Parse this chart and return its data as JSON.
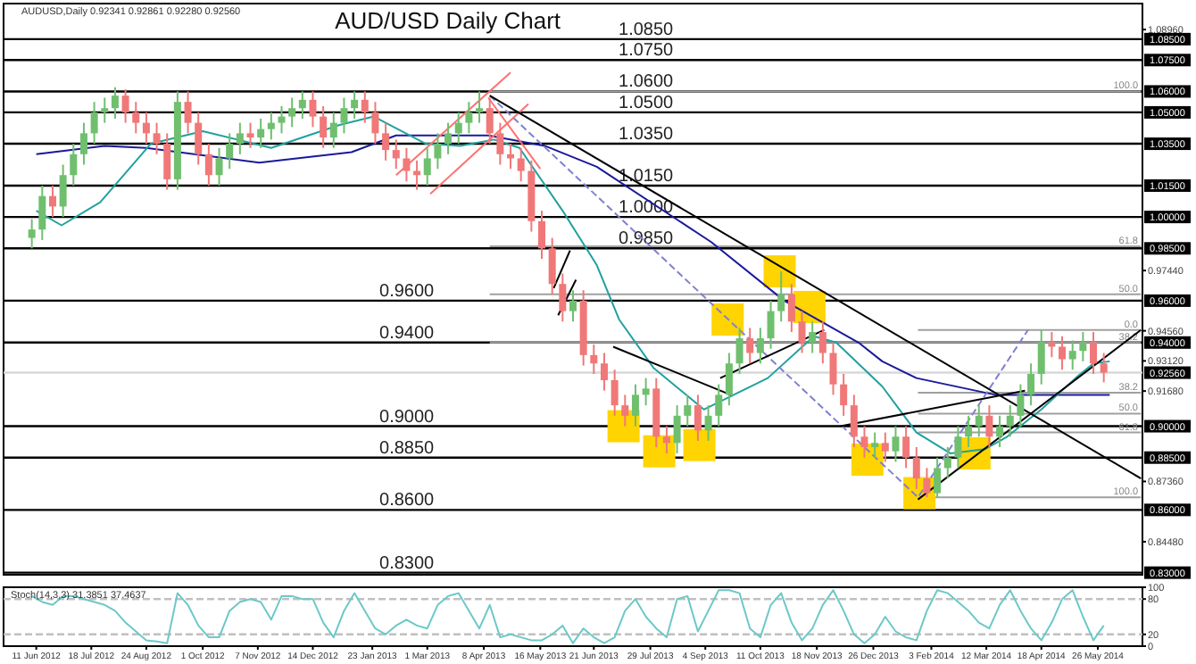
{
  "chart_data": [
    {
      "type": "candlestick",
      "title": "AUD/USD Daily Chart",
      "subtitle": "AUDUSD,Daily 0.92341 0.92861 0.92280 0.92560",
      "tick_labels": "y",
      "xlim": [
        "2012-05-20",
        "2014-06-25"
      ],
      "ylim": [
        0.829,
        1.102
      ],
      "y2lim": [
        0.829,
        1.102
      ],
      "yticks": [
        {
          "value": 1.0896,
          "label": "1.08960"
        },
        {
          "value": 0.9744,
          "label": "0.97440"
        },
        {
          "value": 0.9456,
          "label": "0.94560"
        },
        {
          "value": 0.9312,
          "label": "0.93120"
        },
        {
          "value": 0.9168,
          "label": "0.91680"
        },
        {
          "value": 0.8736,
          "label": "0.87360"
        },
        {
          "value": 0.8448,
          "label": "0.84480"
        }
      ],
      "y2ticks": [
        {
          "value": 1.085,
          "label": "1.08500"
        },
        {
          "value": 1.075,
          "label": "1.07500"
        },
        {
          "value": 1.06,
          "label": "1.06000"
        },
        {
          "value": 1.05,
          "label": "1.05000"
        },
        {
          "value": 1.035,
          "label": "1.03500"
        },
        {
          "value": 1.015,
          "label": "1.01500"
        },
        {
          "value": 1.0,
          "label": "1.00000"
        },
        {
          "value": 0.985,
          "label": "0.98500"
        },
        {
          "value": 0.96,
          "label": "0.96000"
        },
        {
          "value": 0.94,
          "label": "0.94000"
        },
        {
          "value": 0.9256,
          "label": "0.92560"
        },
        {
          "value": 0.9,
          "label": "0.90000"
        },
        {
          "value": 0.885,
          "label": "0.88500"
        },
        {
          "value": 0.86,
          "label": "0.86000"
        },
        {
          "value": 0.83,
          "label": "0.83000"
        }
      ],
      "ref_lines": [
        {
          "axis": "y",
          "value": 1.085,
          "label": "1.0850",
          "color": "#000000"
        },
        {
          "axis": "y",
          "value": 1.075,
          "label": "1.0750",
          "color": "#000000"
        },
        {
          "axis": "y",
          "value": 1.06,
          "label": "1.0600",
          "color": "#000000"
        },
        {
          "axis": "y",
          "value": 1.05,
          "label": "1.0500",
          "color": "#000000"
        },
        {
          "axis": "y",
          "value": 1.035,
          "label": "1.0350",
          "color": "#000000"
        },
        {
          "axis": "y",
          "value": 1.015,
          "label": "1.0150",
          "color": "#000000"
        },
        {
          "axis": "y",
          "value": 1.0,
          "label": "1.0000",
          "color": "#000000"
        },
        {
          "axis": "y",
          "value": 0.985,
          "label": "0.9850",
          "color": "#000000"
        },
        {
          "axis": "y",
          "value": 0.96,
          "label": "0.9600",
          "color": "#000000"
        },
        {
          "axis": "y",
          "value": 0.94,
          "label": "0.9400",
          "color": "#000000"
        },
        {
          "axis": "y",
          "value": 0.9,
          "label": "0.9000",
          "color": "#000000"
        },
        {
          "axis": "y",
          "value": 0.885,
          "label": "0.8850",
          "color": "#000000"
        },
        {
          "axis": "y",
          "value": 0.86,
          "label": "0.8600",
          "color": "#000000"
        },
        {
          "axis": "y",
          "value": 0.83,
          "label": "0.8300",
          "color": "#000000"
        },
        {
          "axis": "y",
          "value": 0.9256,
          "color": "#d8d8d8"
        }
      ],
      "annotations": [
        {
          "text": "100.0",
          "x": "2014-06-22",
          "y": 1.06
        },
        {
          "text": "61.8",
          "x": "2014-06-22",
          "y": 0.986
        },
        {
          "text": "50.0",
          "x": "2014-06-22",
          "y": 0.963
        },
        {
          "text": "38.2",
          "x": "2014-06-22",
          "y": 0.94
        },
        {
          "text": "0.0",
          "x": "2014-06-22",
          "y": 0.946
        },
        {
          "text": "38.2",
          "x": "2014-06-22",
          "y": 0.916
        },
        {
          "text": "50.0",
          "x": "2014-06-22",
          "y": 0.906
        },
        {
          "text": "61.8",
          "x": "2014-06-22",
          "y": 0.897
        },
        {
          "text": "100.0",
          "x": "2014-06-22",
          "y": 0.866
        }
      ],
      "x": [
        "2012-06-08",
        "2012-06-15",
        "2012-06-22",
        "2012-06-29",
        "2012-07-06",
        "2012-07-13",
        "2012-07-20",
        "2012-07-27",
        "2012-08-03",
        "2012-08-10",
        "2012-08-17",
        "2012-08-24",
        "2012-08-31",
        "2012-09-07",
        "2012-09-14",
        "2012-09-21",
        "2012-09-28",
        "2012-10-05",
        "2012-10-12",
        "2012-10-19",
        "2012-10-26",
        "2012-11-02",
        "2012-11-09",
        "2012-11-16",
        "2012-11-23",
        "2012-11-30",
        "2012-12-07",
        "2012-12-14",
        "2012-12-21",
        "2012-12-28",
        "2013-01-04",
        "2013-01-11",
        "2013-01-18",
        "2013-01-25",
        "2013-02-01",
        "2013-02-08",
        "2013-02-15",
        "2013-02-22",
        "2013-03-01",
        "2013-03-08",
        "2013-03-15",
        "2013-03-22",
        "2013-03-29",
        "2013-04-05",
        "2013-04-12",
        "2013-04-19",
        "2013-04-26",
        "2013-05-03",
        "2013-05-10",
        "2013-05-17",
        "2013-05-24",
        "2013-05-31",
        "2013-06-07",
        "2013-06-14",
        "2013-06-21",
        "2013-06-28",
        "2013-07-05",
        "2013-07-12",
        "2013-07-19",
        "2013-07-26",
        "2013-08-02",
        "2013-08-09",
        "2013-08-16",
        "2013-08-23",
        "2013-08-30",
        "2013-09-06",
        "2013-09-13",
        "2013-09-20",
        "2013-09-27",
        "2013-10-04",
        "2013-10-11",
        "2013-10-18",
        "2013-10-25",
        "2013-11-01",
        "2013-11-08",
        "2013-11-15",
        "2013-11-22",
        "2013-11-29",
        "2013-12-06",
        "2013-12-13",
        "2013-12-20",
        "2013-12-27",
        "2014-01-03",
        "2014-01-10",
        "2014-01-17",
        "2014-01-24",
        "2014-01-31",
        "2014-02-07",
        "2014-02-14",
        "2014-02-21",
        "2014-02-28",
        "2014-03-07",
        "2014-03-14",
        "2014-03-21",
        "2014-03-28",
        "2014-04-04",
        "2014-04-11",
        "2014-04-18",
        "2014-04-25",
        "2014-05-02",
        "2014-05-09",
        "2014-05-16",
        "2014-05-23",
        "2014-05-30"
      ],
      "ohlc": [
        [
          0.99,
          0.999,
          0.985,
          0.994
        ],
        [
          0.994,
          1.015,
          0.989,
          1.01
        ],
        [
          1.01,
          1.015,
          1.0,
          1.005
        ],
        [
          1.005,
          1.025,
          1.0,
          1.02
        ],
        [
          1.02,
          1.035,
          1.015,
          1.03
        ],
        [
          1.03,
          1.045,
          1.025,
          1.04
        ],
        [
          1.04,
          1.055,
          1.035,
          1.05
        ],
        [
          1.05,
          1.057,
          1.045,
          1.052
        ],
        [
          1.052,
          1.062,
          1.047,
          1.058
        ],
        [
          1.058,
          1.061,
          1.045,
          1.05
        ],
        [
          1.05,
          1.055,
          1.04,
          1.045
        ],
        [
          1.045,
          1.05,
          1.035,
          1.04
        ],
        [
          1.04,
          1.045,
          1.03,
          1.035
        ],
        [
          1.035,
          1.04,
          1.013,
          1.018
        ],
        [
          1.018,
          1.06,
          1.013,
          1.055
        ],
        [
          1.055,
          1.06,
          1.04,
          1.045
        ],
        [
          1.045,
          1.05,
          1.025,
          1.03
        ],
        [
          1.03,
          1.035,
          1.015,
          1.02
        ],
        [
          1.02,
          1.033,
          1.015,
          1.028
        ],
        [
          1.028,
          1.04,
          1.023,
          1.035
        ],
        [
          1.035,
          1.045,
          1.03,
          1.04
        ],
        [
          1.04,
          1.045,
          1.033,
          1.038
        ],
        [
          1.038,
          1.047,
          1.033,
          1.042
        ],
        [
          1.042,
          1.05,
          1.037,
          1.045
        ],
        [
          1.045,
          1.053,
          1.04,
          1.048
        ],
        [
          1.048,
          1.057,
          1.043,
          1.052
        ],
        [
          1.052,
          1.06,
          1.047,
          1.056
        ],
        [
          1.056,
          1.06,
          1.043,
          1.048
        ],
        [
          1.048,
          1.053,
          1.033,
          1.038
        ],
        [
          1.038,
          1.05,
          1.033,
          1.045
        ],
        [
          1.045,
          1.057,
          1.04,
          1.052
        ],
        [
          1.052,
          1.06,
          1.047,
          1.056
        ],
        [
          1.056,
          1.06,
          1.045,
          1.05
        ],
        [
          1.05,
          1.055,
          1.035,
          1.04
        ],
        [
          1.04,
          1.045,
          1.027,
          1.032
        ],
        [
          1.032,
          1.037,
          1.023,
          1.028
        ],
        [
          1.028,
          1.033,
          1.017,
          1.022
        ],
        [
          1.022,
          1.027,
          1.013,
          1.02
        ],
        [
          1.02,
          1.033,
          1.015,
          1.028
        ],
        [
          1.028,
          1.04,
          1.023,
          1.035
        ],
        [
          1.035,
          1.045,
          1.03,
          1.04
        ],
        [
          1.04,
          1.05,
          1.035,
          1.045
        ],
        [
          1.045,
          1.055,
          1.04,
          1.05
        ],
        [
          1.05,
          1.06,
          1.045,
          1.052
        ],
        [
          1.052,
          1.057,
          1.035,
          1.04
        ],
        [
          1.04,
          1.045,
          1.025,
          1.03
        ],
        [
          1.03,
          1.035,
          1.023,
          1.028
        ],
        [
          1.028,
          1.033,
          1.017,
          1.022
        ],
        [
          1.022,
          1.027,
          0.993,
          0.998
        ],
        [
          0.998,
          1.003,
          0.98,
          0.985
        ],
        [
          0.985,
          0.99,
          0.963,
          0.968
        ],
        [
          0.968,
          0.973,
          0.95,
          0.955
        ],
        [
          0.955,
          0.965,
          0.95,
          0.96
        ],
        [
          0.96,
          0.965,
          0.929,
          0.934
        ],
        [
          0.934,
          0.939,
          0.925,
          0.93
        ],
        [
          0.93,
          0.935,
          0.917,
          0.922
        ],
        [
          0.922,
          0.927,
          0.905,
          0.91
        ],
        [
          0.91,
          0.915,
          0.9,
          0.905
        ],
        [
          0.905,
          0.92,
          0.9,
          0.915
        ],
        [
          0.915,
          0.923,
          0.91,
          0.918
        ],
        [
          0.918,
          0.923,
          0.89,
          0.895
        ],
        [
          0.895,
          0.9,
          0.887,
          0.892
        ],
        [
          0.892,
          0.91,
          0.887,
          0.905
        ],
        [
          0.905,
          0.915,
          0.9,
          0.91
        ],
        [
          0.91,
          0.915,
          0.893,
          0.898
        ],
        [
          0.898,
          0.91,
          0.893,
          0.905
        ],
        [
          0.905,
          0.92,
          0.9,
          0.915
        ],
        [
          0.915,
          0.935,
          0.91,
          0.93
        ],
        [
          0.93,
          0.947,
          0.925,
          0.942
        ],
        [
          0.942,
          0.947,
          0.93,
          0.935
        ],
        [
          0.935,
          0.947,
          0.93,
          0.942
        ],
        [
          0.942,
          0.96,
          0.937,
          0.955
        ],
        [
          0.955,
          0.974,
          0.95,
          0.963
        ],
        [
          0.963,
          0.968,
          0.945,
          0.95
        ],
        [
          0.95,
          0.955,
          0.935,
          0.94
        ],
        [
          0.94,
          0.95,
          0.935,
          0.945
        ],
        [
          0.945,
          0.95,
          0.93,
          0.935
        ],
        [
          0.935,
          0.94,
          0.915,
          0.92
        ],
        [
          0.92,
          0.925,
          0.905,
          0.91
        ],
        [
          0.91,
          0.915,
          0.89,
          0.895
        ],
        [
          0.895,
          0.9,
          0.885,
          0.89
        ],
        [
          0.89,
          0.897,
          0.885,
          0.892
        ],
        [
          0.892,
          0.897,
          0.883,
          0.888
        ],
        [
          0.888,
          0.9,
          0.883,
          0.895
        ],
        [
          0.895,
          0.9,
          0.88,
          0.885
        ],
        [
          0.885,
          0.89,
          0.87,
          0.875
        ],
        [
          0.875,
          0.88,
          0.866,
          0.868
        ],
        [
          0.868,
          0.885,
          0.866,
          0.88
        ],
        [
          0.88,
          0.89,
          0.875,
          0.885
        ],
        [
          0.885,
          0.9,
          0.88,
          0.895
        ],
        [
          0.895,
          0.905,
          0.89,
          0.9
        ],
        [
          0.9,
          0.91,
          0.895,
          0.905
        ],
        [
          0.905,
          0.91,
          0.89,
          0.895
        ],
        [
          0.895,
          0.905,
          0.89,
          0.9
        ],
        [
          0.9,
          0.91,
          0.895,
          0.905
        ],
        [
          0.905,
          0.92,
          0.9,
          0.915
        ],
        [
          0.915,
          0.93,
          0.91,
          0.925
        ],
        [
          0.925,
          0.946,
          0.92,
          0.94
        ],
        [
          0.94,
          0.945,
          0.933,
          0.938
        ],
        [
          0.938,
          0.943,
          0.927,
          0.932
        ],
        [
          0.932,
          0.941,
          0.927,
          0.936
        ],
        [
          0.936,
          0.945,
          0.931,
          0.94
        ],
        [
          0.94,
          0.945,
          0.925,
          0.93
        ],
        [
          0.93,
          0.935,
          0.921,
          0.9256
        ]
      ],
      "series": [
        {
          "type": "line",
          "color": "#a0a0a0",
          "x": [
            "2013-04-12",
            "2014-06-24"
          ],
          "values": [
            1.06,
            1.06
          ]
        },
        {
          "type": "line",
          "color": "#a0a0a0",
          "x": [
            "2013-04-12",
            "2014-06-24"
          ],
          "values": [
            0.986,
            0.986
          ]
        },
        {
          "type": "line",
          "color": "#a0a0a0",
          "x": [
            "2013-04-12",
            "2014-06-24"
          ],
          "values": [
            0.963,
            0.963
          ]
        },
        {
          "type": "line",
          "color": "#a0a0a0",
          "x": [
            "2013-04-12",
            "2014-06-24"
          ],
          "values": [
            0.94,
            0.94
          ]
        },
        {
          "type": "line",
          "color": "#a0a0a0",
          "x": [
            "2014-01-25",
            "2014-06-24"
          ],
          "values": [
            0.946,
            0.946
          ]
        },
        {
          "type": "line",
          "color": "#a0a0a0",
          "x": [
            "2014-01-25",
            "2014-06-24"
          ],
          "values": [
            0.916,
            0.916
          ]
        },
        {
          "type": "line",
          "color": "#a0a0a0",
          "x": [
            "2014-01-25",
            "2014-06-24"
          ],
          "values": [
            0.906,
            0.906
          ]
        },
        {
          "type": "line",
          "color": "#a0a0a0",
          "x": [
            "2014-01-25",
            "2014-06-24"
          ],
          "values": [
            0.897,
            0.897
          ]
        },
        {
          "type": "line",
          "color": "#a0a0a0",
          "x": [
            "2014-01-25",
            "2014-06-24"
          ],
          "values": [
            0.866,
            0.866
          ]
        },
        {
          "type": "scatter",
          "marker": "square",
          "color": "#ffd400",
          "x": [
            "2013-07-11",
            "2013-08-04",
            "2013-08-31",
            "2013-09-19",
            "2013-10-24",
            "2013-11-13",
            "2013-12-22",
            "2014-01-26",
            "2014-03-04"
          ],
          "values": [
            0.9,
            0.888,
            0.891,
            0.951,
            0.974,
            0.957,
            0.884,
            0.868,
            0.887
          ]
        },
        {
          "type": "line",
          "color": "#1a1a9a",
          "x": [
            "2012-06-11",
            "2012-07-27",
            "2012-08-24",
            "2012-11-08",
            "2013-01-09",
            "2013-02-08",
            "2013-04-11",
            "2013-05-19",
            "2013-06-23",
            "2013-09-08",
            "2013-10-27",
            "2013-12-16",
            "2014-01-01",
            "2014-01-24",
            "2014-03-18",
            "2014-06-03"
          ],
          "values": [
            1.03,
            1.034,
            1.033,
            1.026,
            1.031,
            1.039,
            1.039,
            1.034,
            1.024,
            0.988,
            0.96,
            0.94,
            0.931,
            0.923,
            0.915,
            0.915
          ]
        },
        {
          "type": "line",
          "color": "#20a0a0",
          "x": [
            "2012-06-11",
            "2012-06-28",
            "2012-07-24",
            "2012-08-27",
            "2012-10-01",
            "2012-11-16",
            "2013-01-01",
            "2013-01-24",
            "2013-02-28",
            "2013-03-23",
            "2013-04-15",
            "2013-05-02",
            "2013-05-31",
            "2013-06-23",
            "2013-07-08",
            "2013-07-31",
            "2013-09-03",
            "2013-10-16",
            "2013-11-16",
            "2013-12-01",
            "2014-01-01",
            "2014-01-24",
            "2014-02-16",
            "2014-03-11",
            "2014-03-26",
            "2014-04-18",
            "2014-05-11",
            "2014-05-23",
            "2014-06-03"
          ],
          "values": [
            1.003,
            0.996,
            1.007,
            1.035,
            1.041,
            1.033,
            1.044,
            1.048,
            1.035,
            1.034,
            1.037,
            1.033,
            1.003,
            0.977,
            0.951,
            0.928,
            0.908,
            0.923,
            0.943,
            0.94,
            0.919,
            0.897,
            0.887,
            0.889,
            0.895,
            0.908,
            0.923,
            0.93,
            0.931
          ]
        },
        {
          "type": "line",
          "color": "#8080d0",
          "line_style": "dashed",
          "x": [
            "2013-04-12",
            "2014-01-25",
            "2014-04-09"
          ],
          "values": [
            1.058,
            0.866,
            0.946
          ]
        },
        {
          "type": "line",
          "color": "#ff7070",
          "x": [
            "2013-02-08",
            "2013-04-26"
          ],
          "values": [
            1.02,
            1.069
          ]
        },
        {
          "type": "line",
          "color": "#ff7070",
          "x": [
            "2013-03-03",
            "2013-05-08"
          ],
          "values": [
            1.011,
            1.054
          ]
        },
        {
          "type": "line",
          "color": "#ff7070",
          "x": [
            "2013-04-11",
            "2013-05-16"
          ],
          "values": [
            1.057,
            1.023
          ]
        },
        {
          "type": "line",
          "color": "#000000",
          "x": [
            "2013-04-12",
            "2014-06-24"
          ],
          "values": [
            1.058,
            0.875
          ]
        },
        {
          "type": "line",
          "color": "#000000",
          "x": [
            "2014-01-25",
            "2014-06-24"
          ],
          "values": [
            0.865,
            0.946
          ]
        },
        {
          "type": "line",
          "color": "#000000",
          "x": [
            "2013-07-04",
            "2013-09-21"
          ],
          "values": [
            0.938,
            0.915
          ]
        },
        {
          "type": "line",
          "color": "#000000",
          "x": [
            "2013-09-14",
            "2013-11-23"
          ],
          "values": [
            0.923,
            0.946
          ]
        },
        {
          "type": "line",
          "color": "#000000",
          "x": [
            "2013-12-04",
            "2014-04-07"
          ],
          "values": [
            0.9,
            0.917
          ]
        },
        {
          "type": "line",
          "color": "#000000",
          "x": [
            "2013-05-25",
            "2013-06-05"
          ],
          "values": [
            0.966,
            0.984
          ]
        },
        {
          "type": "line",
          "color": "#000000",
          "x": [
            "2013-05-28",
            "2013-06-09"
          ],
          "values": [
            0.953,
            0.97
          ]
        }
      ]
    },
    {
      "type": "line",
      "title": "Stoch(14,3,3) 31.3851 37.4637",
      "xlim": [
        "2012-05-20",
        "2014-06-25"
      ],
      "ylim": [
        0,
        100
      ],
      "yticks": [
        0,
        20,
        80,
        100
      ],
      "xticks": [
        {
          "value": "2012-06-11",
          "label": "11 Jun 2012"
        },
        {
          "value": "2012-07-18",
          "label": "18 Jul 2012"
        },
        {
          "value": "2012-08-24",
          "label": "24 Aug 2012"
        },
        {
          "value": "2012-10-01",
          "label": "1 Oct 2012"
        },
        {
          "value": "2012-11-07",
          "label": "7 Nov 2012"
        },
        {
          "value": "2012-12-14",
          "label": "14 Dec 2012"
        },
        {
          "value": "2013-01-23",
          "label": "23 Jan 2013"
        },
        {
          "value": "2013-03-01",
          "label": "1 Mar 2013"
        },
        {
          "value": "2013-04-08",
          "label": "8 Apr 2013"
        },
        {
          "value": "2013-05-16",
          "label": "16 May 2013"
        },
        {
          "value": "2013-06-21",
          "label": "21 Jun 2013"
        },
        {
          "value": "2013-07-29",
          "label": "29 Jul 2013"
        },
        {
          "value": "2013-09-04",
          "label": "4 Sep 2013"
        },
        {
          "value": "2013-10-11",
          "label": "11 Oct 2013"
        },
        {
          "value": "2013-11-18",
          "label": "18 Nov 2013"
        },
        {
          "value": "2013-12-26",
          "label": "26 Dec 2013"
        },
        {
          "value": "2014-02-03",
          "label": "3 Feb 2014"
        },
        {
          "value": "2014-03-12",
          "label": "12 Mar 2014"
        },
        {
          "value": "2014-04-18",
          "label": "18 Apr 2014"
        },
        {
          "value": "2014-05-26",
          "label": "26 May 2014"
        }
      ],
      "ref_lines": [
        {
          "axis": "y",
          "value": 20,
          "color": "#c0c0c0",
          "line_style": "dashed"
        },
        {
          "axis": "y",
          "value": 80,
          "color": "#c0c0c0",
          "line_style": "dashed"
        }
      ],
      "x": [
        "2012-06-08",
        "2012-06-15",
        "2012-06-22",
        "2012-06-29",
        "2012-07-06",
        "2012-07-13",
        "2012-07-20",
        "2012-07-27",
        "2012-08-03",
        "2012-08-10",
        "2012-08-17",
        "2012-08-24",
        "2012-08-31",
        "2012-09-07",
        "2012-09-14",
        "2012-09-21",
        "2012-09-28",
        "2012-10-05",
        "2012-10-12",
        "2012-10-19",
        "2012-10-26",
        "2012-11-02",
        "2012-11-09",
        "2012-11-16",
        "2012-11-23",
        "2012-11-30",
        "2012-12-07",
        "2012-12-14",
        "2012-12-21",
        "2012-12-28",
        "2013-01-04",
        "2013-01-11",
        "2013-01-18",
        "2013-01-25",
        "2013-02-01",
        "2013-02-08",
        "2013-02-15",
        "2013-02-22",
        "2013-03-01",
        "2013-03-08",
        "2013-03-15",
        "2013-03-22",
        "2013-03-29",
        "2013-04-05",
        "2013-04-12",
        "2013-04-19",
        "2013-04-26",
        "2013-05-03",
        "2013-05-10",
        "2013-05-17",
        "2013-05-24",
        "2013-05-31",
        "2013-06-07",
        "2013-06-14",
        "2013-06-21",
        "2013-06-28",
        "2013-07-05",
        "2013-07-12",
        "2013-07-19",
        "2013-07-26",
        "2013-08-02",
        "2013-08-09",
        "2013-08-16",
        "2013-08-23",
        "2013-08-30",
        "2013-09-06",
        "2013-09-13",
        "2013-09-20",
        "2013-09-27",
        "2013-10-04",
        "2013-10-11",
        "2013-10-18",
        "2013-10-25",
        "2013-11-01",
        "2013-11-08",
        "2013-11-15",
        "2013-11-22",
        "2013-11-29",
        "2013-12-06",
        "2013-12-13",
        "2013-12-20",
        "2013-12-27",
        "2014-01-03",
        "2014-01-10",
        "2014-01-17",
        "2014-01-24",
        "2014-01-31",
        "2014-02-07",
        "2014-02-14",
        "2014-02-21",
        "2014-02-28",
        "2014-03-07",
        "2014-03-14",
        "2014-03-21",
        "2014-03-28",
        "2014-04-04",
        "2014-04-11",
        "2014-04-18",
        "2014-04-25",
        "2014-05-02",
        "2014-05-09",
        "2014-05-16",
        "2014-05-23",
        "2014-05-30"
      ],
      "series": [
        {
          "color": "#6cc8c8",
          "values": [
            85,
            75,
            70,
            85,
            85,
            80,
            75,
            70,
            60,
            40,
            25,
            10,
            8,
            5,
            90,
            70,
            35,
            15,
            15,
            60,
            75,
            80,
            75,
            45,
            85,
            85,
            80,
            80,
            40,
            15,
            60,
            90,
            60,
            30,
            20,
            35,
            45,
            35,
            30,
            70,
            85,
            90,
            60,
            30,
            70,
            15,
            20,
            15,
            10,
            10,
            20,
            35,
            5,
            30,
            15,
            5,
            15,
            60,
            80,
            50,
            30,
            15,
            80,
            85,
            25,
            60,
            95,
            95,
            90,
            30,
            15,
            70,
            90,
            40,
            10,
            30,
            70,
            95,
            60,
            20,
            5,
            20,
            50,
            25,
            15,
            10,
            60,
            95,
            90,
            75,
            60,
            40,
            30,
            70,
            95,
            60,
            30,
            10,
            40,
            80,
            95,
            50,
            10,
            35
          ]
        }
      ]
    }
  ]
}
